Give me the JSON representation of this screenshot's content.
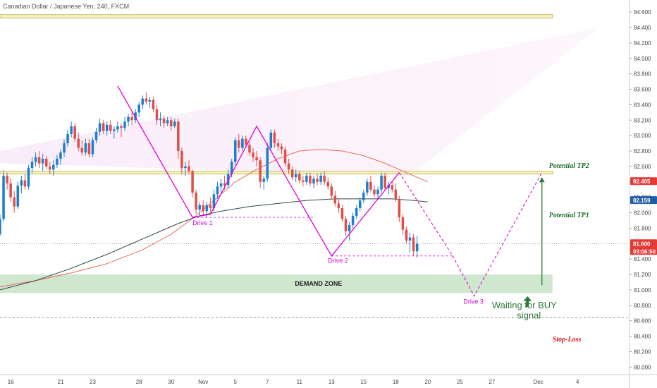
{
  "chart_data": {
    "type": "candlestick",
    "title": "Canadian Dollar / Japanese Yen, 240, FXCM",
    "y_ticks": [
      80.0,
      80.2,
      80.4,
      80.6,
      80.8,
      81.0,
      81.2,
      81.4,
      81.6,
      81.8,
      82.0,
      82.2,
      82.4,
      82.6,
      82.8,
      83.0,
      83.2,
      83.4,
      83.6,
      83.8,
      84.0,
      84.2,
      84.4,
      84.6
    ],
    "y_tick_labels": [
      "80.000",
      "80.200",
      "80.400",
      "80.600",
      "80.800",
      "81.000",
      "81.200",
      "81.400",
      "81.600",
      "81.800",
      "82.000",
      "82.200",
      "82.400",
      "82.600",
      "82.800",
      "83.000",
      "83.200",
      "83.400",
      "83.600",
      "83.800",
      "84.000",
      "84.200",
      "84.400",
      "84.600"
    ],
    "ylim": [
      79.93,
      84.72
    ],
    "x_ticks": [
      {
        "label": "16",
        "i": 3
      },
      {
        "label": "21",
        "i": 17
      },
      {
        "label": "23",
        "i": 26
      },
      {
        "label": "28",
        "i": 39
      },
      {
        "label": "30",
        "i": 48
      },
      {
        "label": "Nov",
        "i": 57
      },
      {
        "label": "5",
        "i": 66
      },
      {
        "label": "7",
        "i": 75
      },
      {
        "label": "11",
        "i": 84
      },
      {
        "label": "13",
        "i": 93
      },
      {
        "label": "15",
        "i": 102
      },
      {
        "label": "18",
        "i": 111
      },
      {
        "label": "20",
        "i": 120
      },
      {
        "label": "25",
        "i": 129
      },
      {
        "label": "27",
        "i": 138
      },
      {
        "label": "Dec",
        "i": 151
      },
      {
        "label": "4",
        "i": 162
      }
    ],
    "xlim": [
      0,
      176
    ],
    "colors": {
      "up": "#1e7fd0",
      "down": "#e0504a",
      "ma_fast": "#e86a5a",
      "ma_slow": "#2e4a44",
      "harmonic": "#e000e0",
      "zone_fill": "#cfe6cf",
      "level": "#c8c062",
      "tag_red": "#e53935",
      "tag_blue": "#1e5fa8"
    },
    "candles": [
      {
        "i": 0,
        "o": 81.72,
        "h": 81.98,
        "l": 81.7,
        "c": 81.92
      },
      {
        "i": 1,
        "o": 81.92,
        "h": 82.55,
        "l": 81.88,
        "c": 82.48
      },
      {
        "i": 2,
        "o": 82.48,
        "h": 82.52,
        "l": 82.3,
        "c": 82.38
      },
      {
        "i": 3,
        "o": 82.38,
        "h": 82.45,
        "l": 82.14,
        "c": 82.2
      },
      {
        "i": 4,
        "o": 82.2,
        "h": 82.28,
        "l": 82.0,
        "c": 82.08
      },
      {
        "i": 5,
        "o": 82.08,
        "h": 82.4,
        "l": 82.05,
        "c": 82.35
      },
      {
        "i": 6,
        "o": 82.35,
        "h": 82.48,
        "l": 82.25,
        "c": 82.42
      },
      {
        "i": 7,
        "o": 82.42,
        "h": 82.5,
        "l": 82.3,
        "c": 82.34
      },
      {
        "i": 8,
        "o": 82.34,
        "h": 82.62,
        "l": 82.3,
        "c": 82.58
      },
      {
        "i": 9,
        "o": 82.58,
        "h": 82.72,
        "l": 82.52,
        "c": 82.66
      },
      {
        "i": 10,
        "o": 82.66,
        "h": 82.78,
        "l": 82.6,
        "c": 82.72
      },
      {
        "i": 11,
        "o": 82.72,
        "h": 82.8,
        "l": 82.58,
        "c": 82.64
      },
      {
        "i": 12,
        "o": 82.64,
        "h": 82.76,
        "l": 82.54,
        "c": 82.7
      },
      {
        "i": 13,
        "o": 82.7,
        "h": 82.74,
        "l": 82.56,
        "c": 82.6
      },
      {
        "i": 14,
        "o": 82.6,
        "h": 82.66,
        "l": 82.5,
        "c": 82.56
      },
      {
        "i": 15,
        "o": 82.56,
        "h": 82.68,
        "l": 82.48,
        "c": 82.62
      },
      {
        "i": 16,
        "o": 82.62,
        "h": 82.75,
        "l": 82.58,
        "c": 82.7
      },
      {
        "i": 17,
        "o": 82.7,
        "h": 82.82,
        "l": 82.62,
        "c": 82.78
      },
      {
        "i": 18,
        "o": 82.78,
        "h": 82.95,
        "l": 82.72,
        "c": 82.9
      },
      {
        "i": 19,
        "o": 82.9,
        "h": 83.08,
        "l": 82.86,
        "c": 83.02
      },
      {
        "i": 20,
        "o": 83.02,
        "h": 83.18,
        "l": 82.98,
        "c": 83.12
      },
      {
        "i": 21,
        "o": 83.12,
        "h": 83.16,
        "l": 82.92,
        "c": 82.96
      },
      {
        "i": 22,
        "o": 82.96,
        "h": 83.04,
        "l": 82.8,
        "c": 82.84
      },
      {
        "i": 23,
        "o": 82.84,
        "h": 82.94,
        "l": 82.74,
        "c": 82.78
      },
      {
        "i": 24,
        "o": 82.78,
        "h": 82.96,
        "l": 82.74,
        "c": 82.9
      },
      {
        "i": 25,
        "o": 82.9,
        "h": 82.96,
        "l": 82.72,
        "c": 82.76
      },
      {
        "i": 26,
        "o": 82.76,
        "h": 82.98,
        "l": 82.72,
        "c": 82.94
      },
      {
        "i": 27,
        "o": 82.94,
        "h": 83.1,
        "l": 82.9,
        "c": 83.05
      },
      {
        "i": 28,
        "o": 83.05,
        "h": 83.22,
        "l": 83.0,
        "c": 83.16
      },
      {
        "i": 29,
        "o": 83.16,
        "h": 83.2,
        "l": 83.02,
        "c": 83.06
      },
      {
        "i": 30,
        "o": 83.06,
        "h": 83.18,
        "l": 83.0,
        "c": 83.14
      },
      {
        "i": 31,
        "o": 83.14,
        "h": 83.2,
        "l": 83.02,
        "c": 83.06
      },
      {
        "i": 32,
        "o": 83.06,
        "h": 83.12,
        "l": 82.96,
        "c": 83.08
      },
      {
        "i": 33,
        "o": 83.08,
        "h": 83.18,
        "l": 83.04,
        "c": 83.12
      },
      {
        "i": 34,
        "o": 83.12,
        "h": 83.16,
        "l": 82.98,
        "c": 83.1
      },
      {
        "i": 35,
        "o": 83.1,
        "h": 83.24,
        "l": 83.06,
        "c": 83.18
      },
      {
        "i": 36,
        "o": 83.18,
        "h": 83.28,
        "l": 83.12,
        "c": 83.24
      },
      {
        "i": 37,
        "o": 83.24,
        "h": 83.3,
        "l": 83.14,
        "c": 83.2
      },
      {
        "i": 38,
        "o": 83.2,
        "h": 83.34,
        "l": 83.16,
        "c": 83.3
      },
      {
        "i": 39,
        "o": 83.3,
        "h": 83.44,
        "l": 83.24,
        "c": 83.4
      },
      {
        "i": 40,
        "o": 83.4,
        "h": 83.52,
        "l": 83.34,
        "c": 83.48
      },
      {
        "i": 41,
        "o": 83.48,
        "h": 83.56,
        "l": 83.4,
        "c": 83.44
      },
      {
        "i": 42,
        "o": 83.44,
        "h": 83.5,
        "l": 83.36,
        "c": 83.46
      },
      {
        "i": 43,
        "o": 83.46,
        "h": 83.5,
        "l": 83.3,
        "c": 83.34
      },
      {
        "i": 44,
        "o": 83.34,
        "h": 83.4,
        "l": 83.14,
        "c": 83.2
      },
      {
        "i": 45,
        "o": 83.2,
        "h": 83.3,
        "l": 83.12,
        "c": 83.22
      },
      {
        "i": 46,
        "o": 83.22,
        "h": 83.26,
        "l": 83.1,
        "c": 83.16
      },
      {
        "i": 47,
        "o": 83.16,
        "h": 83.24,
        "l": 83.12,
        "c": 83.2
      },
      {
        "i": 48,
        "o": 83.2,
        "h": 83.24,
        "l": 83.06,
        "c": 83.12
      },
      {
        "i": 49,
        "o": 83.12,
        "h": 83.22,
        "l": 83.1,
        "c": 83.18
      },
      {
        "i": 50,
        "o": 83.18,
        "h": 83.22,
        "l": 82.7,
        "c": 82.8
      },
      {
        "i": 51,
        "o": 82.8,
        "h": 82.84,
        "l": 82.5,
        "c": 82.58
      },
      {
        "i": 52,
        "o": 82.58,
        "h": 82.66,
        "l": 82.48,
        "c": 82.6
      },
      {
        "i": 53,
        "o": 82.6,
        "h": 82.68,
        "l": 82.5,
        "c": 82.54
      },
      {
        "i": 54,
        "o": 82.54,
        "h": 82.56,
        "l": 82.2,
        "c": 82.26
      },
      {
        "i": 55,
        "o": 82.26,
        "h": 82.3,
        "l": 81.98,
        "c": 82.04
      },
      {
        "i": 56,
        "o": 82.04,
        "h": 82.14,
        "l": 81.94,
        "c": 82.1
      },
      {
        "i": 57,
        "o": 82.1,
        "h": 82.16,
        "l": 81.96,
        "c": 82.02
      },
      {
        "i": 58,
        "o": 82.02,
        "h": 82.14,
        "l": 81.94,
        "c": 82.1
      },
      {
        "i": 59,
        "o": 82.1,
        "h": 82.2,
        "l": 82.0,
        "c": 82.06
      },
      {
        "i": 60,
        "o": 82.06,
        "h": 82.3,
        "l": 82.02,
        "c": 82.24
      },
      {
        "i": 61,
        "o": 82.24,
        "h": 82.4,
        "l": 82.18,
        "c": 82.34
      },
      {
        "i": 62,
        "o": 82.34,
        "h": 82.44,
        "l": 82.26,
        "c": 82.38
      },
      {
        "i": 63,
        "o": 82.38,
        "h": 82.48,
        "l": 82.3,
        "c": 82.36
      },
      {
        "i": 64,
        "o": 82.36,
        "h": 82.56,
        "l": 82.32,
        "c": 82.5
      },
      {
        "i": 65,
        "o": 82.5,
        "h": 82.7,
        "l": 82.46,
        "c": 82.66
      },
      {
        "i": 66,
        "o": 82.66,
        "h": 82.98,
        "l": 82.62,
        "c": 82.94
      },
      {
        "i": 67,
        "o": 82.94,
        "h": 83.02,
        "l": 82.78,
        "c": 82.84
      },
      {
        "i": 68,
        "o": 82.84,
        "h": 83.0,
        "l": 82.8,
        "c": 82.96
      },
      {
        "i": 69,
        "o": 82.96,
        "h": 83.0,
        "l": 82.84,
        "c": 82.88
      },
      {
        "i": 70,
        "o": 82.88,
        "h": 82.92,
        "l": 82.74,
        "c": 82.78
      },
      {
        "i": 71,
        "o": 82.78,
        "h": 82.84,
        "l": 82.66,
        "c": 82.72
      },
      {
        "i": 72,
        "o": 82.72,
        "h": 82.8,
        "l": 82.6,
        "c": 82.68
      },
      {
        "i": 73,
        "o": 82.68,
        "h": 82.72,
        "l": 82.32,
        "c": 82.4
      },
      {
        "i": 74,
        "o": 82.4,
        "h": 82.48,
        "l": 82.3,
        "c": 82.44
      },
      {
        "i": 75,
        "o": 82.44,
        "h": 82.9,
        "l": 82.4,
        "c": 82.84
      },
      {
        "i": 76,
        "o": 82.84,
        "h": 83.08,
        "l": 82.8,
        "c": 83.04
      },
      {
        "i": 77,
        "o": 83.04,
        "h": 83.08,
        "l": 82.84,
        "c": 82.9
      },
      {
        "i": 78,
        "o": 82.9,
        "h": 82.96,
        "l": 82.8,
        "c": 82.86
      },
      {
        "i": 79,
        "o": 82.86,
        "h": 82.9,
        "l": 82.76,
        "c": 82.82
      },
      {
        "i": 80,
        "o": 82.82,
        "h": 82.86,
        "l": 82.6,
        "c": 82.64
      },
      {
        "i": 81,
        "o": 82.64,
        "h": 82.7,
        "l": 82.5,
        "c": 82.56
      },
      {
        "i": 82,
        "o": 82.56,
        "h": 82.6,
        "l": 82.42,
        "c": 82.46
      },
      {
        "i": 83,
        "o": 82.46,
        "h": 82.56,
        "l": 82.4,
        "c": 82.5
      },
      {
        "i": 84,
        "o": 82.5,
        "h": 82.54,
        "l": 82.38,
        "c": 82.42
      },
      {
        "i": 85,
        "o": 82.42,
        "h": 82.48,
        "l": 82.34,
        "c": 82.4
      },
      {
        "i": 86,
        "o": 82.4,
        "h": 82.52,
        "l": 82.36,
        "c": 82.48
      },
      {
        "i": 87,
        "o": 82.48,
        "h": 82.52,
        "l": 82.34,
        "c": 82.38
      },
      {
        "i": 88,
        "o": 82.38,
        "h": 82.48,
        "l": 82.32,
        "c": 82.44
      },
      {
        "i": 89,
        "o": 82.44,
        "h": 82.5,
        "l": 82.36,
        "c": 82.4
      },
      {
        "i": 90,
        "o": 82.4,
        "h": 82.52,
        "l": 82.36,
        "c": 82.48
      },
      {
        "i": 91,
        "o": 82.48,
        "h": 82.54,
        "l": 82.36,
        "c": 82.4
      },
      {
        "i": 92,
        "o": 82.4,
        "h": 82.46,
        "l": 82.3,
        "c": 82.34
      },
      {
        "i": 93,
        "o": 82.34,
        "h": 82.38,
        "l": 82.18,
        "c": 82.22
      },
      {
        "i": 94,
        "o": 82.22,
        "h": 82.28,
        "l": 82.08,
        "c": 82.12
      },
      {
        "i": 95,
        "o": 82.12,
        "h": 82.18,
        "l": 82.0,
        "c": 82.06
      },
      {
        "i": 96,
        "o": 82.06,
        "h": 82.1,
        "l": 81.88,
        "c": 81.92
      },
      {
        "i": 97,
        "o": 81.92,
        "h": 81.96,
        "l": 81.7,
        "c": 81.76
      },
      {
        "i": 98,
        "o": 81.76,
        "h": 81.88,
        "l": 81.64,
        "c": 81.84
      },
      {
        "i": 99,
        "o": 81.84,
        "h": 82.0,
        "l": 81.8,
        "c": 81.96
      },
      {
        "i": 100,
        "o": 81.96,
        "h": 82.1,
        "l": 81.92,
        "c": 82.06
      },
      {
        "i": 101,
        "o": 82.06,
        "h": 82.2,
        "l": 82.02,
        "c": 82.16
      },
      {
        "i": 102,
        "o": 82.16,
        "h": 82.3,
        "l": 82.12,
        "c": 82.26
      },
      {
        "i": 103,
        "o": 82.26,
        "h": 82.44,
        "l": 82.22,
        "c": 82.4
      },
      {
        "i": 104,
        "o": 82.4,
        "h": 82.48,
        "l": 82.26,
        "c": 82.3
      },
      {
        "i": 105,
        "o": 82.3,
        "h": 82.36,
        "l": 82.2,
        "c": 82.24
      },
      {
        "i": 106,
        "o": 82.24,
        "h": 82.34,
        "l": 82.18,
        "c": 82.3
      },
      {
        "i": 107,
        "o": 82.3,
        "h": 82.52,
        "l": 82.26,
        "c": 82.48
      },
      {
        "i": 108,
        "o": 82.48,
        "h": 82.52,
        "l": 82.28,
        "c": 82.32
      },
      {
        "i": 109,
        "o": 82.32,
        "h": 82.4,
        "l": 82.24,
        "c": 82.36
      },
      {
        "i": 110,
        "o": 82.36,
        "h": 82.4,
        "l": 82.26,
        "c": 82.3
      },
      {
        "i": 111,
        "o": 82.3,
        "h": 82.38,
        "l": 82.14,
        "c": 82.18
      },
      {
        "i": 112,
        "o": 82.18,
        "h": 82.22,
        "l": 81.88,
        "c": 81.94
      },
      {
        "i": 113,
        "o": 81.94,
        "h": 81.98,
        "l": 81.72,
        "c": 81.78
      },
      {
        "i": 114,
        "o": 81.78,
        "h": 81.82,
        "l": 81.6,
        "c": 81.64
      },
      {
        "i": 115,
        "o": 81.64,
        "h": 81.74,
        "l": 81.48,
        "c": 81.68
      },
      {
        "i": 116,
        "o": 81.68,
        "h": 81.72,
        "l": 81.44,
        "c": 81.5
      },
      {
        "i": 117,
        "o": 81.5,
        "h": 81.7,
        "l": 81.42,
        "c": 81.6
      }
    ],
    "ma_fast": [
      [
        0,
        81.04
      ],
      [
        10,
        81.12
      ],
      [
        20,
        81.22
      ],
      [
        30,
        81.34
      ],
      [
        40,
        81.52
      ],
      [
        48,
        81.72
      ],
      [
        55,
        81.96
      ],
      [
        60,
        82.16
      ],
      [
        66,
        82.4
      ],
      [
        72,
        82.56
      ],
      [
        78,
        82.7
      ],
      [
        84,
        82.8
      ],
      [
        90,
        82.82
      ],
      [
        96,
        82.8
      ],
      [
        102,
        82.74
      ],
      [
        108,
        82.64
      ],
      [
        114,
        82.52
      ],
      [
        120,
        82.4
      ]
    ],
    "ma_slow": [
      [
        0,
        81.0
      ],
      [
        10,
        81.12
      ],
      [
        20,
        81.28
      ],
      [
        30,
        81.46
      ],
      [
        40,
        81.66
      ],
      [
        50,
        81.86
      ],
      [
        56,
        81.96
      ],
      [
        62,
        82.02
      ],
      [
        70,
        82.08
      ],
      [
        78,
        82.12
      ],
      [
        86,
        82.16
      ],
      [
        94,
        82.18
      ],
      [
        102,
        82.18
      ],
      [
        110,
        82.18
      ],
      [
        116,
        82.16
      ],
      [
        120,
        82.14
      ]
    ],
    "harmonic_path": [
      [
        33,
        83.64
      ],
      [
        54,
        81.94
      ],
      [
        59,
        81.98
      ],
      [
        72,
        83.12
      ],
      [
        93,
        81.44
      ],
      [
        112,
        82.52
      ],
      [
        127,
        81.44
      ],
      [
        133,
        80.92
      ],
      [
        152,
        82.52
      ]
    ],
    "harmonic_dashed_from": 6,
    "channel_top": [
      [
        0,
        82.8
      ],
      [
        168,
        84.4
      ]
    ],
    "channel_bottom": [
      [
        0,
        82.64
      ],
      [
        115,
        82.48
      ]
    ],
    "level_top": 84.54,
    "level_resistance": 82.52,
    "current_price": 81.6,
    "stop_level": 80.64,
    "demand_zone": {
      "from": 80.96,
      "to": 81.2,
      "x0": 0,
      "x1": 155,
      "label": "DEMAND ZONE"
    },
    "drive_lines": [
      {
        "x0": 54,
        "x1": 88,
        "y": 81.94
      },
      {
        "x0": 93,
        "x1": 127,
        "y": 81.44
      }
    ],
    "annotations": {
      "drive1": {
        "text": "Drive 1",
        "x": 54,
        "y": 81.84
      },
      "drive2": {
        "text": "Drive 2",
        "x": 92,
        "y": 81.35
      },
      "drive3": {
        "text": "Drive 3",
        "x": 130,
        "y": 80.82
      },
      "tp2": {
        "text": "Potential TP2",
        "x": 154,
        "y": 82.58
      },
      "tp1": {
        "text": "Potential TP1",
        "x": 154,
        "y": 81.94
      },
      "waiting_line1": {
        "text": "Waiting for BUY",
        "x": 138,
        "y": 80.76
      },
      "waiting_line2": {
        "text": "signal",
        "x": 145,
        "y": 80.63
      },
      "stop": {
        "text": "Stop-Loss",
        "x": 155,
        "y": 80.33
      }
    },
    "target_arrow": {
      "x": 154,
      "from": 81.06,
      "to": 82.46
    },
    "small_arrow": {
      "x": 147,
      "from": 80.78,
      "to": 80.9
    },
    "price_tags": [
      {
        "text": "82.405",
        "value": 82.405,
        "color": "#e53935"
      },
      {
        "text": "82.159",
        "value": 82.159,
        "color": "#1e5fa8"
      },
      {
        "text": "81.600",
        "value": 81.6,
        "color": "#e53935",
        "sub": "03:06:50"
      }
    ]
  }
}
